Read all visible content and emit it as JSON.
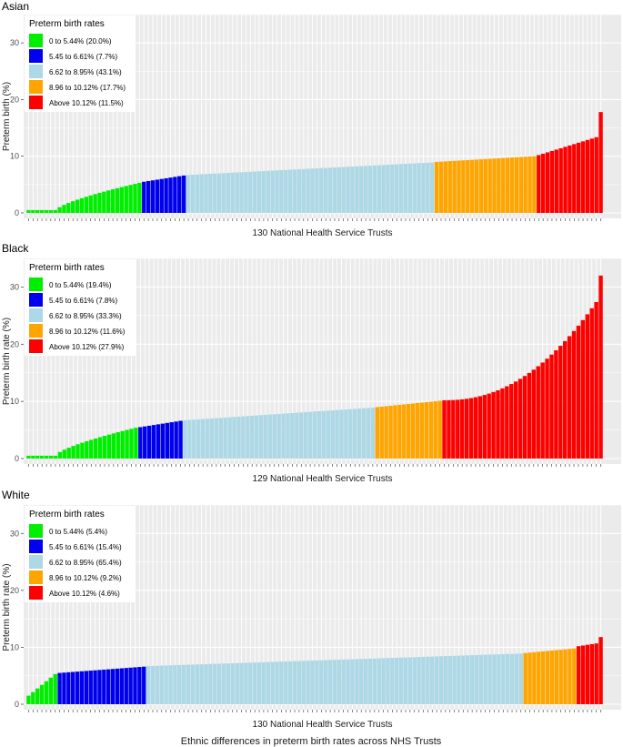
{
  "caption": "Ethnic differences in preterm birth rates across NHS Trusts",
  "colors": {
    "panel_bg": "#ebebeb",
    "grid": "#ffffff",
    "band_1": "#00ee00",
    "band_2": "#0000ee",
    "band_3": "#add8e6",
    "band_4": "#ffa500",
    "band_5": "#ff0000"
  },
  "chart_data": [
    {
      "type": "bar",
      "title": "Asian",
      "xlabel": "130 National Health Service Trusts",
      "ylabel": "Preterm birth (%)",
      "ylim": [
        0,
        35
      ],
      "yticks": [
        0,
        10,
        20,
        30
      ],
      "n_bars": 130,
      "legend_title": "Preterm birth rates",
      "legend_position": "top-left",
      "legend": [
        {
          "label": "0 to 5.44% (20.0%)",
          "band": 1
        },
        {
          "label": "5.45 to 6.61% (7.7%)",
          "band": 2
        },
        {
          "label": "6.62 to 8.95% (43.1%)",
          "band": 3
        },
        {
          "label": "8.96 to 10.12% (17.7%)",
          "band": 4
        },
        {
          "label": "Above 10.12% (11.5%)",
          "band": 5
        }
      ],
      "bands": [
        {
          "count": 26,
          "start": 0.5,
          "end": 5.3
        },
        {
          "count": 10,
          "start": 5.5,
          "end": 6.6
        },
        {
          "count": 56,
          "start": 6.7,
          "end": 8.9
        },
        {
          "count": 23,
          "start": 9.0,
          "end": 10.0
        },
        {
          "count": 15,
          "start": 10.2,
          "end": 13.6
        }
      ],
      "last_value": 17.8
    },
    {
      "type": "bar",
      "title": "Black",
      "xlabel": "129 National Health Service Trusts",
      "ylabel": "Preterm birth rate (%)",
      "ylim": [
        0,
        35
      ],
      "yticks": [
        0,
        10,
        20,
        30
      ],
      "n_bars": 129,
      "legend_title": "Preterm birth rates",
      "legend_position": "top-left",
      "legend": [
        {
          "label": "0 to 5.44% (19.4%)",
          "band": 1
        },
        {
          "label": "5.45 to 6.61% (7.8%)",
          "band": 2
        },
        {
          "label": "6.62 to 8.95% (33.3%)",
          "band": 3
        },
        {
          "label": "8.96 to 10.12% (11.6%)",
          "band": 4
        },
        {
          "label": "Above 10.12% (27.9%)",
          "band": 5
        }
      ],
      "bands": [
        {
          "count": 25,
          "start": 0.5,
          "end": 5.4
        },
        {
          "count": 10,
          "start": 5.5,
          "end": 6.6
        },
        {
          "count": 43,
          "start": 6.7,
          "end": 8.9
        },
        {
          "count": 15,
          "start": 9.0,
          "end": 10.1
        },
        {
          "count": 36,
          "start": 10.2,
          "end": 28.5
        }
      ],
      "last_value": 32.0
    },
    {
      "type": "bar",
      "title": "White",
      "xlabel": "130 National Health Service Trusts",
      "ylabel": "Preterm birth rate (%)",
      "ylim": [
        0,
        35
      ],
      "yticks": [
        0,
        10,
        20,
        30
      ],
      "n_bars": 130,
      "legend_title": "Preterm birth rates",
      "legend_position": "top-left",
      "legend": [
        {
          "label": "0 to 5.44% (5.4%)",
          "band": 1
        },
        {
          "label": "5.45 to 6.61% (15.4%)",
          "band": 2
        },
        {
          "label": "6.62 to 8.95% (65.4%)",
          "band": 3
        },
        {
          "label": "8.96 to 10.12% (9.2%)",
          "band": 4
        },
        {
          "label": "Above 10.12% (4.6%)",
          "band": 5
        }
      ],
      "bands": [
        {
          "count": 7,
          "start": 1.5,
          "end": 5.3
        },
        {
          "count": 20,
          "start": 5.5,
          "end": 6.6
        },
        {
          "count": 85,
          "start": 6.7,
          "end": 8.9
        },
        {
          "count": 12,
          "start": 9.0,
          "end": 9.8
        },
        {
          "count": 6,
          "start": 10.2,
          "end": 10.8
        }
      ],
      "last_value": 11.8
    }
  ]
}
